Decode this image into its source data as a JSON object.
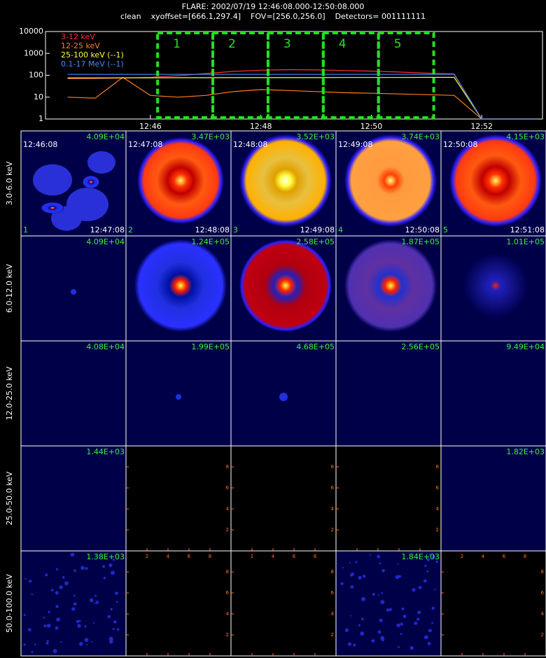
{
  "header": {
    "title": "FLARE: 2002/07/19 12:46:08.000-12:50:08.000",
    "subtitle": "clean    xyoffset=[666.1,297.4]    FOV=[256.0,256.0]    Detectors= 001111111"
  },
  "chart_data": {
    "type": "line",
    "log_y": true,
    "legend": "upper left",
    "x": [
      764.5,
      765,
      765.5,
      766,
      766.5,
      767,
      767.5,
      768,
      768.5,
      769,
      769.5,
      770,
      770.5,
      771,
      771.5,
      772,
      772.5,
      773
    ],
    "xlim": [
      764.1,
      773.1
    ],
    "xticks": [
      {
        "value": 766,
        "label": "12:46"
      },
      {
        "value": 768,
        "label": "12:48"
      },
      {
        "value": 770,
        "label": "12:50"
      },
      {
        "value": 772,
        "label": "12:52"
      }
    ],
    "ylim": [
      1,
      10000
    ],
    "yticks": [
      1,
      10,
      100,
      1000,
      10000
    ],
    "series": [
      {
        "name": "3-12 keV",
        "color": "#ff3030",
        "values": [
          70,
          72,
          75,
          80,
          95,
          120,
          150,
          170,
          180,
          175,
          165,
          155,
          140,
          125,
          115,
          1,
          1,
          1
        ]
      },
      {
        "name": "12-25 keV",
        "color": "#ff7f1e",
        "values": [
          10,
          9,
          80,
          12,
          10,
          12,
          18,
          22,
          20,
          18,
          16,
          15,
          14,
          13,
          12,
          1,
          1,
          1
        ]
      },
      {
        "name": "25-100 keV (--1)",
        "color": "#ffff40",
        "values": [
          75,
          75,
          76,
          76,
          77,
          77,
          78,
          78,
          78,
          78,
          79,
          79,
          79,
          80,
          80,
          1,
          1,
          1
        ]
      },
      {
        "name": "0.1-17 MeV (--1)",
        "color": "#3c8cff",
        "values": [
          110,
          110,
          110,
          110,
          110,
          110,
          110,
          110,
          110,
          110,
          110,
          110,
          110,
          110,
          110,
          1,
          1,
          1
        ]
      }
    ],
    "intervals": [
      {
        "label": "1",
        "start": 766.13,
        "end": 767.13
      },
      {
        "label": "2",
        "start": 767.13,
        "end": 768.13
      },
      {
        "label": "3",
        "start": 768.13,
        "end": 769.13
      },
      {
        "label": "4",
        "start": 769.13,
        "end": 770.13
      },
      {
        "label": "5",
        "start": 770.13,
        "end": 771.13
      }
    ],
    "interval_color": "#22e022"
  },
  "image_grid": {
    "empty_panel_ticks": [
      "2",
      "4",
      "6",
      "8"
    ],
    "rows": [
      {
        "label": "3.0-6.0 keV",
        "panels": [
          {
            "max": "4.09E+04",
            "start": "12:46:08",
            "end": "12:47:08",
            "index": "1"
          },
          {
            "max": "3.47E+03",
            "start": "12:47:08",
            "end": "12:48:08",
            "index": "2"
          },
          {
            "max": "3.52E+03",
            "start": "12:48:08",
            "end": "12:49:08",
            "index": "3"
          },
          {
            "max": "3.74E+03",
            "start": "12:49:08",
            "end": "12:50:08",
            "index": "4"
          },
          {
            "max": "4.15E+03",
            "start": "12:50:08",
            "end": "12:51:08",
            "index": "5"
          }
        ]
      },
      {
        "label": "6.0-12.0 keV",
        "panels": [
          {
            "max": "4.09E+04"
          },
          {
            "max": "1.24E+05"
          },
          {
            "max": "2.58E+05"
          },
          {
            "max": "1.87E+05"
          },
          {
            "max": "1.01E+05"
          }
        ]
      },
      {
        "label": "12.0-25.0 keV",
        "panels": [
          {
            "max": "4.08E+04"
          },
          {
            "max": "1.99E+05"
          },
          {
            "max": "4.68E+05"
          },
          {
            "max": "2.56E+05"
          },
          {
            "max": "9.49E+04"
          }
        ]
      },
      {
        "label": "25.0-50.0 keV",
        "panels": [
          {
            "max": "1.44E+03"
          },
          {
            "max": null
          },
          {
            "max": null
          },
          {
            "max": null
          },
          {
            "max": "1.82E+03"
          }
        ]
      },
      {
        "label": "50.0-100.0 keV",
        "panels": [
          {
            "max": "1.38E+03"
          },
          {
            "max": null
          },
          {
            "max": null
          },
          {
            "max": "1.84E+03"
          },
          {
            "max": null
          }
        ]
      }
    ]
  }
}
